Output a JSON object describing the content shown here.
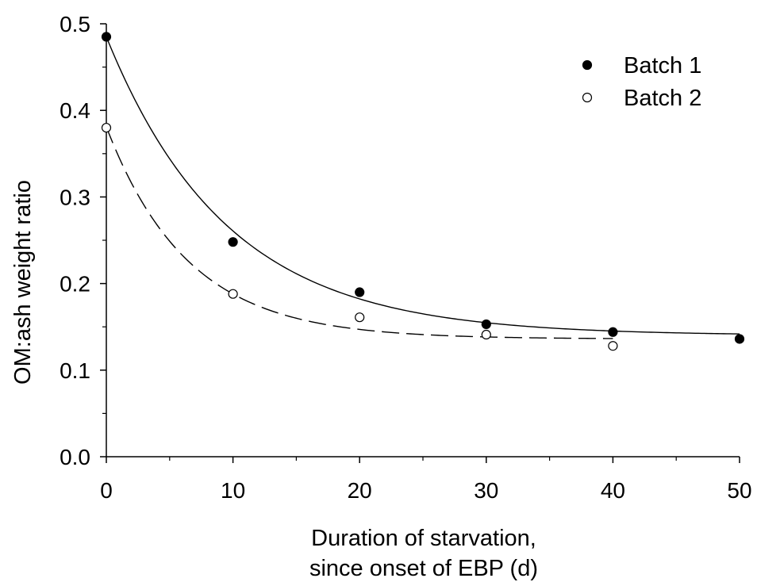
{
  "chart_data": {
    "type": "scatter",
    "title": "",
    "xlabel_lines": [
      "Duration of starvation,",
      "since onset of EBP (d)"
    ],
    "ylabel": "OM:ash weight ratio",
    "xlim": [
      0,
      50
    ],
    "ylim": [
      0,
      0.5
    ],
    "xticks": [
      0,
      10,
      20,
      30,
      40,
      50
    ],
    "xtick_labels": [
      "0",
      "10",
      "20",
      "30",
      "40",
      "50"
    ],
    "yticks": [
      0.0,
      0.1,
      0.2,
      0.3,
      0.4,
      0.5
    ],
    "ytick_labels": [
      "0.0",
      "0.1",
      "0.2",
      "0.3",
      "0.4",
      "0.5"
    ],
    "grid": false,
    "legend_position": "top-right",
    "series": [
      {
        "name": "Batch 1",
        "marker": "filled-circle",
        "fit_line": "solid",
        "color": "#000000",
        "points": [
          {
            "x": 0,
            "y": 0.485
          },
          {
            "x": 10,
            "y": 0.248
          },
          {
            "x": 20,
            "y": 0.19
          },
          {
            "x": 30,
            "y": 0.153
          },
          {
            "x": 40,
            "y": 0.144
          },
          {
            "x": 50,
            "y": 0.136
          }
        ],
        "fit": {
          "model": "y = c + a*exp(-k*x)",
          "a": 0.345,
          "k": 0.105,
          "c": 0.14,
          "x_range": [
            0,
            50
          ]
        }
      },
      {
        "name": "Batch 2",
        "marker": "open-circle",
        "fit_line": "dashed",
        "color": "#000000",
        "points": [
          {
            "x": 0,
            "y": 0.38
          },
          {
            "x": 10,
            "y": 0.188
          },
          {
            "x": 20,
            "y": 0.161
          },
          {
            "x": 30,
            "y": 0.141
          },
          {
            "x": 40,
            "y": 0.128
          }
        ],
        "fit": {
          "model": "y = c + a*exp(-k*x)",
          "a": 0.245,
          "k": 0.155,
          "c": 0.136,
          "x_range": [
            0,
            40
          ]
        }
      }
    ]
  }
}
